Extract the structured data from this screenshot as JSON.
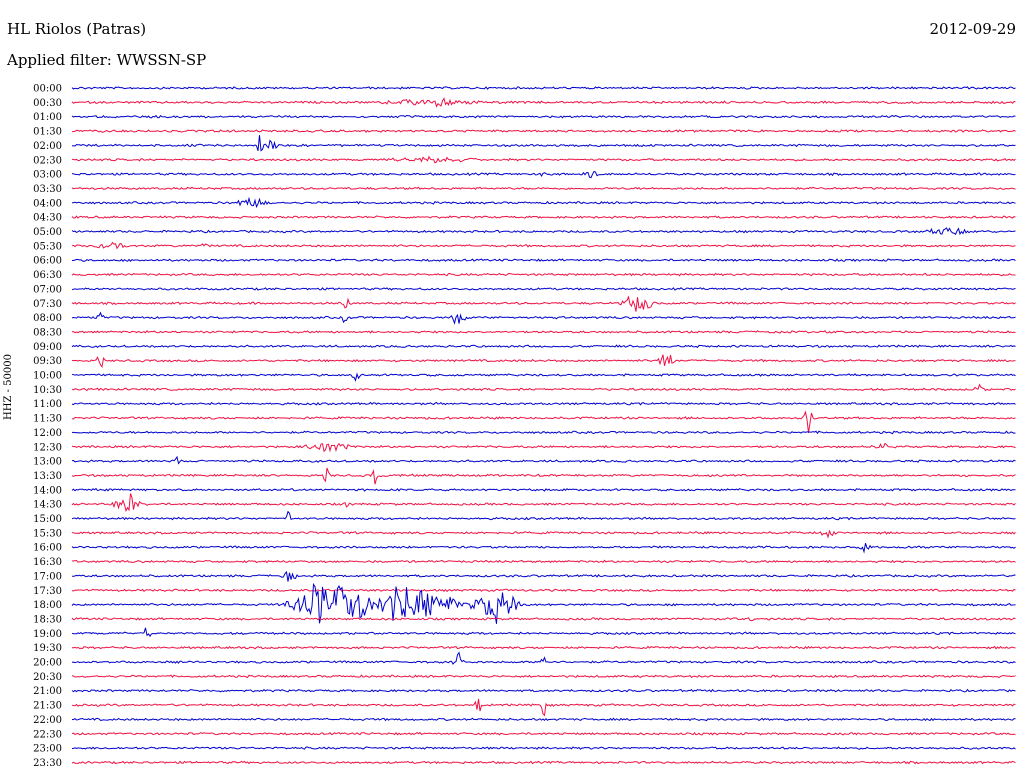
{
  "header": {
    "station": "HL Riolos (Patras)",
    "date": "2012-09-29",
    "filter": "Applied filter: WWSSN-SP"
  },
  "side_label": "HHZ - 50000",
  "colors": {
    "blue": "#0000cc",
    "red": "#ee1144"
  },
  "chart_data": {
    "type": "line",
    "title": "HL Riolos (Patras)",
    "subtitle": "Applied filter: WWSSN-SP",
    "date": "2012-09-29",
    "channel": "HHZ - 50000",
    "grid": false,
    "legend": "none",
    "series_colors_alternate": [
      "#0000cc",
      "#ee1144"
    ],
    "row_labels": [
      "00:00",
      "00:30",
      "01:00",
      "01:30",
      "02:00",
      "02:30",
      "03:00",
      "03:30",
      "04:00",
      "04:30",
      "05:00",
      "05:30",
      "06:00",
      "06:30",
      "07:00",
      "07:30",
      "08:00",
      "08:30",
      "09:00",
      "09:30",
      "10:00",
      "10:30",
      "11:00",
      "11:30",
      "12:00",
      "12:30",
      "13:00",
      "13:30",
      "14:00",
      "14:30",
      "15:00",
      "15:30",
      "16:00",
      "16:30",
      "17:00",
      "17:30",
      "18:00",
      "18:30",
      "19:00",
      "19:30",
      "20:00",
      "20:30",
      "21:00",
      "21:30",
      "22:00",
      "22:30",
      "23:00",
      "23:30"
    ],
    "events": [
      {
        "row": 1,
        "pos": 0.38,
        "amp": 4,
        "width": 0.06
      },
      {
        "row": 4,
        "pos": 0.21,
        "amp": 6,
        "width": 0.01
      },
      {
        "row": 4,
        "pos": 0.2,
        "amp": 20,
        "width": 0.005
      },
      {
        "row": 5,
        "pos": 0.38,
        "amp": 3,
        "width": 0.06
      },
      {
        "row": 6,
        "pos": 0.5,
        "amp": 5,
        "width": 0.004
      },
      {
        "row": 6,
        "pos": 0.55,
        "amp": 5,
        "width": 0.01
      },
      {
        "row": 8,
        "pos": 0.19,
        "amp": 6,
        "width": 0.02
      },
      {
        "row": 10,
        "pos": 0.93,
        "amp": 4,
        "width": 0.03
      },
      {
        "row": 11,
        "pos": 0.04,
        "amp": 4,
        "width": 0.02
      },
      {
        "row": 11,
        "pos": 0.14,
        "amp": 6,
        "width": 0.004
      },
      {
        "row": 15,
        "pos": 0.29,
        "amp": 12,
        "width": 0.004
      },
      {
        "row": 15,
        "pos": 0.6,
        "amp": 12,
        "width": 0.02
      },
      {
        "row": 16,
        "pos": 0.29,
        "amp": 12,
        "width": 0.005
      },
      {
        "row": 16,
        "pos": 0.41,
        "amp": 10,
        "width": 0.01
      },
      {
        "row": 16,
        "pos": 0.03,
        "amp": 10,
        "width": 0.004
      },
      {
        "row": 19,
        "pos": 0.03,
        "amp": 14,
        "width": 0.004
      },
      {
        "row": 19,
        "pos": 0.63,
        "amp": 12,
        "width": 0.01
      },
      {
        "row": 20,
        "pos": 0.3,
        "amp": 6,
        "width": 0.006
      },
      {
        "row": 21,
        "pos": 0.96,
        "amp": 12,
        "width": 0.005
      },
      {
        "row": 23,
        "pos": 0.78,
        "amp": 18,
        "width": 0.006
      },
      {
        "row": 25,
        "pos": 0.27,
        "amp": 6,
        "width": 0.03
      },
      {
        "row": 25,
        "pos": 0.86,
        "amp": 4,
        "width": 0.01
      },
      {
        "row": 26,
        "pos": 0.11,
        "amp": 10,
        "width": 0.004
      },
      {
        "row": 27,
        "pos": 0.27,
        "amp": 14,
        "width": 0.004
      },
      {
        "row": 27,
        "pos": 0.32,
        "amp": 16,
        "width": 0.004
      },
      {
        "row": 29,
        "pos": 0.06,
        "amp": 12,
        "width": 0.02
      },
      {
        "row": 29,
        "pos": 0.29,
        "amp": 6,
        "width": 0.004
      },
      {
        "row": 30,
        "pos": 0.23,
        "amp": 14,
        "width": 0.004
      },
      {
        "row": 31,
        "pos": 0.8,
        "amp": 6,
        "width": 0.01
      },
      {
        "row": 32,
        "pos": 0.84,
        "amp": 8,
        "width": 0.01
      },
      {
        "row": 34,
        "pos": 0.23,
        "amp": 6,
        "width": 0.01
      },
      {
        "row": 36,
        "pos": 0.27,
        "amp": 28,
        "width": 0.05
      },
      {
        "row": 36,
        "pos": 0.35,
        "amp": 22,
        "width": 0.08
      },
      {
        "row": 36,
        "pos": 0.45,
        "amp": 24,
        "width": 0.03
      },
      {
        "row": 37,
        "pos": 0.72,
        "amp": 6,
        "width": 0.004
      },
      {
        "row": 38,
        "pos": 0.08,
        "amp": 8,
        "width": 0.006
      },
      {
        "row": 40,
        "pos": 0.41,
        "amp": 10,
        "width": 0.008
      },
      {
        "row": 40,
        "pos": 0.5,
        "amp": 8,
        "width": 0.006
      },
      {
        "row": 43,
        "pos": 0.43,
        "amp": 18,
        "width": 0.004
      },
      {
        "row": 43,
        "pos": 0.5,
        "amp": 18,
        "width": 0.004
      }
    ]
  }
}
